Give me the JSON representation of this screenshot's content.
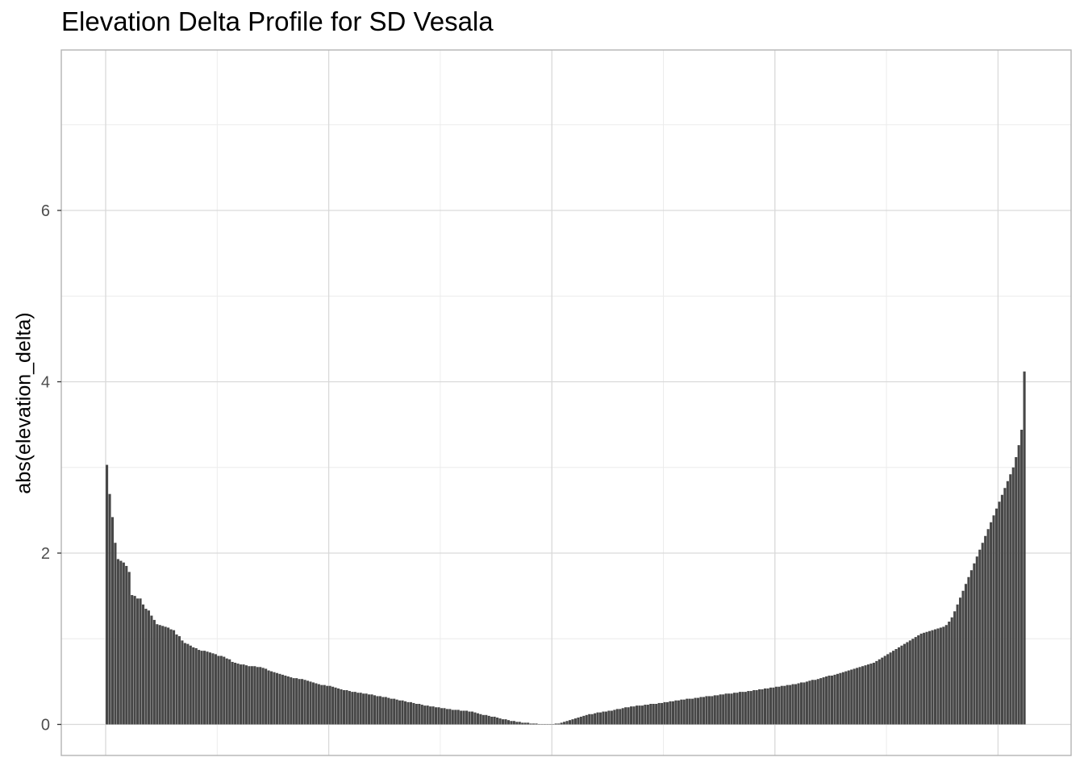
{
  "chart_data": {
    "type": "bar",
    "title": "Elevation Delta Profile for SD Vesala",
    "xlabel": "",
    "ylabel": "abs(elevation_delta)",
    "ylim": [
      -0.7,
      7.8
    ],
    "yticks": [
      0,
      2,
      4,
      6
    ],
    "grid": true,
    "bar_color": "#474747",
    "categories_note": "x tick labels not visible",
    "n_bars": 330,
    "values": [
      3.03,
      2.69,
      2.42,
      2.12,
      1.93,
      1.91,
      1.89,
      1.85,
      1.78,
      1.51,
      1.5,
      1.47,
      1.47,
      1.4,
      1.35,
      1.33,
      1.27,
      1.22,
      1.17,
      1.16,
      1.15,
      1.14,
      1.13,
      1.11,
      1.1,
      1.05,
      1.03,
      0.98,
      0.95,
      0.94,
      0.92,
      0.9,
      0.89,
      0.87,
      0.86,
      0.86,
      0.85,
      0.84,
      0.83,
      0.82,
      0.8,
      0.8,
      0.79,
      0.77,
      0.76,
      0.73,
      0.72,
      0.71,
      0.7,
      0.7,
      0.69,
      0.68,
      0.68,
      0.68,
      0.67,
      0.67,
      0.66,
      0.65,
      0.63,
      0.62,
      0.61,
      0.6,
      0.59,
      0.58,
      0.57,
      0.56,
      0.55,
      0.54,
      0.54,
      0.53,
      0.53,
      0.52,
      0.51,
      0.5,
      0.49,
      0.48,
      0.47,
      0.46,
      0.46,
      0.45,
      0.45,
      0.44,
      0.43,
      0.42,
      0.41,
      0.4,
      0.4,
      0.39,
      0.38,
      0.38,
      0.37,
      0.37,
      0.36,
      0.36,
      0.35,
      0.35,
      0.34,
      0.33,
      0.33,
      0.32,
      0.32,
      0.31,
      0.3,
      0.3,
      0.29,
      0.28,
      0.28,
      0.27,
      0.26,
      0.26,
      0.25,
      0.24,
      0.24,
      0.23,
      0.22,
      0.22,
      0.21,
      0.21,
      0.2,
      0.2,
      0.19,
      0.19,
      0.18,
      0.18,
      0.17,
      0.17,
      0.17,
      0.16,
      0.16,
      0.16,
      0.15,
      0.15,
      0.14,
      0.13,
      0.12,
      0.11,
      0.11,
      0.1,
      0.09,
      0.09,
      0.08,
      0.07,
      0.06,
      0.06,
      0.05,
      0.04,
      0.04,
      0.03,
      0.03,
      0.02,
      0.02,
      0.02,
      0.01,
      0.01,
      0.01,
      0.0,
      0.0,
      0.0,
      0.0,
      0.0,
      0.0,
      0.01,
      0.01,
      0.02,
      0.03,
      0.04,
      0.05,
      0.06,
      0.07,
      0.08,
      0.09,
      0.1,
      0.11,
      0.12,
      0.12,
      0.13,
      0.14,
      0.14,
      0.15,
      0.15,
      0.16,
      0.16,
      0.17,
      0.18,
      0.18,
      0.19,
      0.2,
      0.2,
      0.21,
      0.21,
      0.22,
      0.22,
      0.22,
      0.23,
      0.23,
      0.24,
      0.24,
      0.24,
      0.25,
      0.25,
      0.26,
      0.26,
      0.27,
      0.27,
      0.28,
      0.28,
      0.29,
      0.29,
      0.3,
      0.3,
      0.3,
      0.31,
      0.31,
      0.32,
      0.32,
      0.33,
      0.33,
      0.33,
      0.34,
      0.34,
      0.35,
      0.35,
      0.36,
      0.36,
      0.36,
      0.37,
      0.37,
      0.38,
      0.38,
      0.38,
      0.39,
      0.39,
      0.4,
      0.4,
      0.41,
      0.41,
      0.42,
      0.42,
      0.43,
      0.43,
      0.44,
      0.44,
      0.45,
      0.45,
      0.46,
      0.46,
      0.47,
      0.47,
      0.48,
      0.49,
      0.49,
      0.5,
      0.51,
      0.52,
      0.52,
      0.53,
      0.54,
      0.55,
      0.56,
      0.57,
      0.57,
      0.58,
      0.59,
      0.6,
      0.61,
      0.62,
      0.63,
      0.64,
      0.65,
      0.66,
      0.67,
      0.68,
      0.69,
      0.7,
      0.71,
      0.72,
      0.74,
      0.76,
      0.78,
      0.8,
      0.82,
      0.84,
      0.86,
      0.88,
      0.9,
      0.92,
      0.94,
      0.96,
      0.98,
      1.0,
      1.02,
      1.04,
      1.06,
      1.07,
      1.08,
      1.09,
      1.1,
      1.11,
      1.12,
      1.13,
      1.14,
      1.16,
      1.2,
      1.25,
      1.32,
      1.4,
      1.48,
      1.56,
      1.64,
      1.72,
      1.8,
      1.88,
      1.96,
      2.04,
      2.12,
      2.2,
      2.28,
      2.36,
      2.44,
      2.52,
      2.6,
      2.68,
      2.76,
      2.84,
      2.92,
      3.0,
      3.12,
      3.26,
      3.44,
      4.12
    ]
  }
}
